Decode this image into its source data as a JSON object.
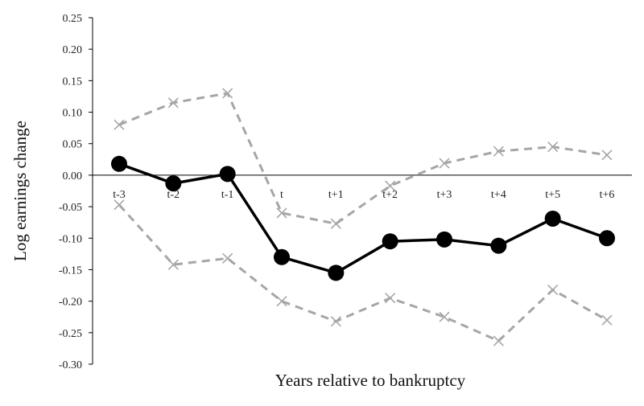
{
  "chart_data": {
    "type": "line",
    "title": "",
    "xlabel": "Years relative to bankruptcy",
    "ylabel": "Log earnings change",
    "categories": [
      "t-3",
      "t-2",
      "t-1",
      "t",
      "t+1",
      "t+2",
      "t+3",
      "t+4",
      "t+5",
      "t+6"
    ],
    "ylim": [
      -0.3,
      0.25
    ],
    "yticks": [
      "0.25",
      "0.20",
      "0.15",
      "0.10",
      "0.05",
      "0.00",
      "-0.05",
      "-0.10",
      "-0.15",
      "-0.20",
      "-0.25",
      "-0.30"
    ],
    "grid": false,
    "legend": "none",
    "series": [
      {
        "values": [
          0.018,
          -0.013,
          0.002,
          -0.13,
          -0.155,
          -0.105,
          -0.102,
          -0.112,
          -0.069,
          -0.1
        ],
        "color": "#000000",
        "style": "solid",
        "marker": "circle"
      },
      {
        "values": [
          0.08,
          0.115,
          0.13,
          -0.06,
          -0.077,
          -0.017,
          0.019,
          0.038,
          0.045,
          0.032
        ],
        "color": "#a6a6a6",
        "style": "dashed",
        "marker": "x"
      },
      {
        "values": [
          -0.047,
          -0.142,
          -0.132,
          -0.2,
          -0.232,
          -0.195,
          -0.225,
          -0.263,
          -0.182,
          -0.23
        ],
        "color": "#a6a6a6",
        "style": "dashed",
        "marker": "x"
      }
    ]
  }
}
